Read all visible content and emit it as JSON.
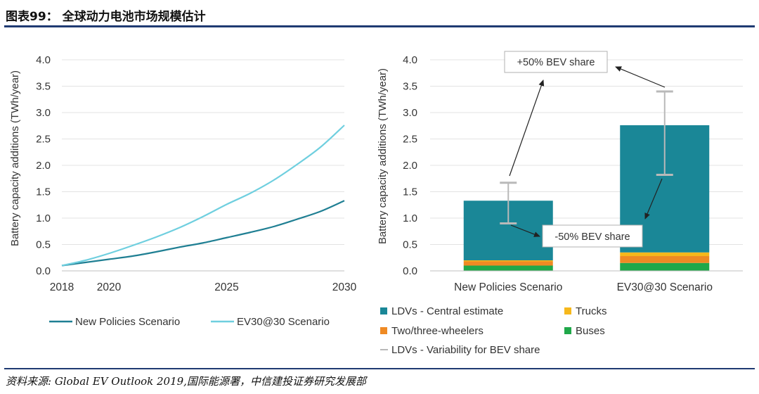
{
  "figure": {
    "title": "图表99：  全球动力电池市场规模估计",
    "source": "资料来源: Global EV Outlook 2019,国际能源署，中信建投证券研究发展部"
  },
  "chart_data": [
    {
      "type": "line",
      "ylabel": "Battery capacity additions (TWh/year)",
      "ylim": [
        0,
        4
      ],
      "yticks": [
        "0.0",
        "0.5",
        "1.0",
        "1.5",
        "2.0",
        "2.5",
        "3.0",
        "3.5",
        "4.0"
      ],
      "xlim": [
        2018,
        2030
      ],
      "xticks": [
        "2018",
        "2020",
        "2025",
        "2030"
      ],
      "grid": true,
      "legend_position": "bottom",
      "x": [
        2018,
        2019,
        2020,
        2021,
        2022,
        2023,
        2024,
        2025,
        2026,
        2027,
        2028,
        2029,
        2030
      ],
      "series": [
        {
          "name": "New Policies Scenario",
          "color": "#1f7f93",
          "values": [
            0.1,
            0.16,
            0.22,
            0.28,
            0.36,
            0.45,
            0.53,
            0.63,
            0.73,
            0.84,
            0.98,
            1.13,
            1.33
          ]
        },
        {
          "name": "EV30@30 Scenario",
          "color": "#6fcfdf",
          "values": [
            0.1,
            0.2,
            0.33,
            0.48,
            0.64,
            0.82,
            1.03,
            1.26,
            1.47,
            1.72,
            2.02,
            2.35,
            2.76
          ]
        }
      ]
    },
    {
      "type": "bar",
      "stacked": true,
      "ylabel": "Battery capacity additions (TWh/year)",
      "ylim": [
        0,
        4
      ],
      "yticks": [
        "0.0",
        "0.5",
        "1.0",
        "1.5",
        "2.0",
        "2.5",
        "3.0",
        "3.5",
        "4.0"
      ],
      "grid": true,
      "legend_position": "bottom",
      "categories": [
        "New Policies Scenario",
        "EV30@30 Scenario"
      ],
      "series": [
        {
          "name": "Buses",
          "color": "#20a84a",
          "values": [
            0.1,
            0.15
          ]
        },
        {
          "name": "Two/three-wheelers",
          "color": "#ef8a24",
          "values": [
            0.08,
            0.13
          ]
        },
        {
          "name": "Trucks",
          "color": "#f6b81c",
          "values": [
            0.02,
            0.07
          ]
        },
        {
          "name": "LDVs - Central estimate",
          "color": "#1a8797",
          "values": [
            1.13,
            2.41
          ]
        }
      ],
      "error_bars": {
        "name": "LDVs - Variability for BEV share",
        "color": "#b9b9b9",
        "low": [
          0.9,
          1.82
        ],
        "high": [
          1.67,
          3.4
        ]
      },
      "annotations": {
        "up": "+50% BEV share",
        "down": "-50% BEV share"
      }
    }
  ]
}
